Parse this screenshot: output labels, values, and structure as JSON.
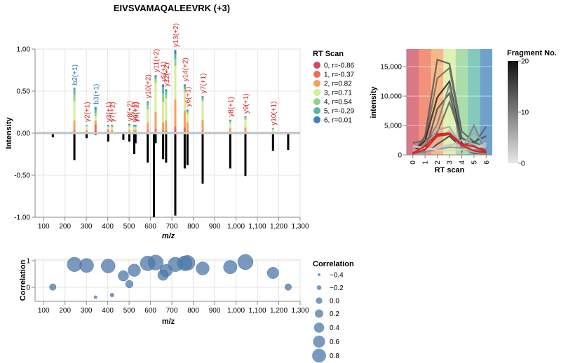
{
  "chart_data": [
    {
      "type": "bar",
      "title": "EIVSVAMAQALEEVRK (+3)",
      "xlabel": "m/z",
      "ylabel": "Intensity",
      "xlim": [
        60,
        1300
      ],
      "ylim": [
        -1,
        1
      ],
      "x_ticks": [
        "100",
        "200",
        "300",
        "400",
        "500",
        "600",
        "700",
        "800",
        "900",
        "1,000",
        "1,100",
        "1,200",
        "1,300"
      ],
      "y_ticks": [
        "-1.00",
        "-0.50",
        "0.00",
        "0.50",
        "1.00"
      ],
      "legend": {
        "title": "RT Scan",
        "placement": "right",
        "entries": [
          {
            "label": "0, r=-0.86",
            "color": "#d0495d"
          },
          {
            "label": "1, r=-0.37",
            "color": "#ed6d4e"
          },
          {
            "label": "2, r=0.82",
            "color": "#f6a05c"
          },
          {
            "label": "3, r=0.71",
            "color": "#d4ee98"
          },
          {
            "label": "4, r=0.54",
            "color": "#8fd28f"
          },
          {
            "label": "5, r=-0.29",
            "color": "#5bb7a7"
          },
          {
            "label": "6, r=0.01",
            "color": "#3d82bb"
          }
        ]
      },
      "observed": [
        {
          "mz": 244,
          "segments": [
            0.01,
            0.02,
            0.12,
            0.23,
            0.08,
            0.07,
            0.01
          ],
          "label": "b2(+1)",
          "label_color": "#1f77b4"
        },
        {
          "mz": 301,
          "segments": [
            0.01,
            0.01,
            0.02,
            0.04,
            0.01,
            0.01,
            0.0
          ],
          "label": "y2(+1)",
          "label_color": "#d62728"
        },
        {
          "mz": 343,
          "segments": [
            0.03,
            0.07,
            0.05,
            0.05,
            0.04,
            0.04,
            0.03
          ],
          "label": "b3(+1)",
          "label_color": "#1f77b4"
        },
        {
          "mz": 402,
          "segments": [
            0.01,
            0.02,
            0.02,
            0.02,
            0.01,
            0.01,
            0.01
          ],
          "label": "y3(+1)",
          "label_color": "#d62728"
        },
        {
          "mz": 420,
          "segments": [
            0.01,
            0.01,
            0.02,
            0.03,
            0.01,
            0.01,
            0.01
          ],
          "label": "y7(+2)",
          "label_color": "#d62728"
        },
        {
          "mz": 501,
          "segments": [
            0.01,
            0.01,
            0.02,
            0.04,
            0.01,
            0.01,
            0.01
          ],
          "label": "y8(+2)",
          "label_color": "#d62728"
        },
        {
          "mz": 524,
          "segments": [
            0.01,
            0.01,
            0.02,
            0.03,
            0.01,
            0.01,
            0.01
          ],
          "label": "y4(+1)",
          "label_color": "#d62728"
        },
        {
          "mz": 530,
          "segments": [
            0.01,
            0.01,
            0.02,
            0.03,
            0.01,
            0.01,
            0.01
          ],
          "label": "y9(+2)",
          "label_color": "#d62728"
        },
        {
          "mz": 587,
          "segments": [
            0.01,
            0.02,
            0.1,
            0.15,
            0.05,
            0.04,
            0.01
          ],
          "label": "y10(+2)",
          "label_color": "#d62728"
        },
        {
          "mz": 624,
          "segments": [
            0.02,
            0.03,
            0.2,
            0.35,
            0.04,
            0.03,
            0.02
          ],
          "label": "y11(+2)",
          "label_color": "#d62728"
        },
        {
          "mz": 659,
          "segments": [
            0.01,
            0.02,
            0.1,
            0.24,
            0.1,
            0.08,
            0.03
          ],
          "label": "y5(+1)",
          "label_color": "#d62728"
        },
        {
          "mz": 673,
          "segments": [
            0.01,
            0.02,
            0.12,
            0.26,
            0.05,
            0.04,
            0.02
          ],
          "label": "y12(+2)",
          "label_color": "#d62728"
        },
        {
          "mz": 716,
          "segments": [
            0.03,
            0.05,
            0.32,
            0.4,
            0.08,
            0.06,
            0.05
          ],
          "label": "y13(+2)",
          "label_color": "#d62728"
        },
        {
          "mz": 760,
          "segments": [
            0.02,
            0.05,
            0.2,
            0.22,
            0.04,
            0.03,
            0.02
          ],
          "label": "y14(+2)",
          "label_color": "#d62728"
        },
        {
          "mz": 773,
          "segments": [
            0.01,
            0.02,
            0.1,
            0.1,
            0.02,
            0.02,
            0.01
          ],
          "label": "y6(+1)",
          "label_color": "#d62728"
        },
        {
          "mz": 844,
          "segments": [
            0.01,
            0.02,
            0.13,
            0.22,
            0.02,
            0.03,
            0.01
          ],
          "label": "y7(+1)",
          "label_color": "#d62728"
        },
        {
          "mz": 973,
          "segments": [
            0.01,
            0.01,
            0.04,
            0.06,
            0.02,
            0.01,
            0.01
          ],
          "label": "y8(+1)",
          "label_color": "#d62728"
        },
        {
          "mz": 1044,
          "segments": [
            0.01,
            0.01,
            0.05,
            0.09,
            0.02,
            0.01,
            0.01
          ],
          "label": "y9(+1)",
          "label_color": "#d62728"
        },
        {
          "mz": 1173,
          "segments": [
            0.0,
            0.0,
            0.01,
            0.03,
            0.01,
            0.01,
            0.0
          ],
          "label": "y10(+1)",
          "label_color": "#d62728"
        }
      ],
      "predicted": [
        {
          "mz": 143,
          "value": -0.05
        },
        {
          "mz": 244,
          "value": -0.32
        },
        {
          "mz": 301,
          "value": -0.06
        },
        {
          "mz": 343,
          "value": -0.02
        },
        {
          "mz": 402,
          "value": -0.1
        },
        {
          "mz": 473,
          "value": -0.08
        },
        {
          "mz": 501,
          "value": -0.1
        },
        {
          "mz": 524,
          "value": -0.25
        },
        {
          "mz": 530,
          "value": -0.12
        },
        {
          "mz": 587,
          "value": -0.35
        },
        {
          "mz": 616,
          "value": -1.0
        },
        {
          "mz": 624,
          "value": -0.12
        },
        {
          "mz": 659,
          "value": -0.31
        },
        {
          "mz": 673,
          "value": -0.35
        },
        {
          "mz": 716,
          "value": -0.98
        },
        {
          "mz": 760,
          "value": -0.42
        },
        {
          "mz": 773,
          "value": -0.38
        },
        {
          "mz": 844,
          "value": -0.6
        },
        {
          "mz": 973,
          "value": -0.42
        },
        {
          "mz": 1044,
          "value": -0.51
        },
        {
          "mz": 1173,
          "value": -0.21
        },
        {
          "mz": 1244,
          "value": -0.2
        }
      ]
    },
    {
      "type": "scatter",
      "xlabel": "m/z",
      "ylabel": "Correlation",
      "xlim": [
        60,
        1300
      ],
      "ylim": [
        -0.4,
        1
      ],
      "x_ticks": [
        "100",
        "200",
        "300",
        "400",
        "500",
        "600",
        "700",
        "800",
        "900",
        "1,000",
        "1,100",
        "1,200",
        "1,300"
      ],
      "y_ticks": [
        "0",
        "1"
      ],
      "color": "#4c78a8",
      "points": [
        {
          "mz": 143,
          "r": 0.01
        },
        {
          "mz": 244,
          "r": 0.86
        },
        {
          "mz": 301,
          "r": 0.82
        },
        {
          "mz": 343,
          "r": -0.37
        },
        {
          "mz": 402,
          "r": 0.8
        },
        {
          "mz": 420,
          "r": -0.29
        },
        {
          "mz": 473,
          "r": 0.43
        },
        {
          "mz": 501,
          "r": 0.12
        },
        {
          "mz": 524,
          "r": 0.64
        },
        {
          "mz": 587,
          "r": 0.9
        },
        {
          "mz": 624,
          "r": 0.93
        },
        {
          "mz": 659,
          "r": 0.46
        },
        {
          "mz": 673,
          "r": 0.63
        },
        {
          "mz": 716,
          "r": 0.86
        },
        {
          "mz": 760,
          "r": 0.9
        },
        {
          "mz": 773,
          "r": 0.92
        },
        {
          "mz": 844,
          "r": 0.71
        },
        {
          "mz": 973,
          "r": 0.76
        },
        {
          "mz": 1044,
          "r": 0.95
        },
        {
          "mz": 1173,
          "r": 0.54
        },
        {
          "mz": 1244,
          "r": 0.01
        }
      ],
      "legend": {
        "title": "Correlation",
        "placement": "right",
        "entries": [
          "−0.4",
          "−0.2",
          "0.0",
          "0.2",
          "0.4",
          "0.6",
          "0.8"
        ],
        "values": [
          -0.4,
          -0.2,
          0.0,
          0.2,
          0.4,
          0.6,
          0.8
        ]
      }
    },
    {
      "type": "line",
      "xlabel": "RT scan",
      "ylabel": "intensity",
      "x": [
        0,
        1,
        2,
        3,
        4,
        5,
        6
      ],
      "ylim": [
        0,
        18000
      ],
      "y_ticks": [
        "0",
        "5,000",
        "10,000",
        "15,000"
      ],
      "band_colors": [
        "#d0495d",
        "#ed6d4e",
        "#f6a05c",
        "#d4ee98",
        "#8fd28f",
        "#5bb7a7",
        "#3d82bb"
      ],
      "highlight_color": "#d62728",
      "series": [
        {
          "values": [
            200,
            3200,
            16200,
            15500,
            4000,
            2200,
            1200
          ],
          "shade": 0.7
        },
        {
          "values": [
            300,
            2500,
            13000,
            14800,
            3000,
            1500,
            900
          ],
          "shade": 0.6
        },
        {
          "values": [
            400,
            2400,
            9800,
            12500,
            2000,
            800,
            600
          ],
          "shade": 0.95
        },
        {
          "values": [
            0,
            600,
            7800,
            10500,
            1600,
            2200,
            3200
          ],
          "shade": 0.75
        },
        {
          "values": [
            300,
            1800,
            5200,
            12000,
            500,
            5000,
            300
          ],
          "shade": 0.5
        },
        {
          "values": [
            2000,
            2500,
            3800,
            9000,
            2800,
            1800,
            4800
          ],
          "shade": 0.65
        },
        {
          "values": [
            1200,
            1500,
            4200,
            4800,
            1500,
            3800,
            1800
          ],
          "shade": 0.3
        },
        {
          "values": [
            200,
            300,
            1800,
            3200,
            1200,
            300,
            200
          ],
          "shade": 0.85
        },
        {
          "values": [
            100,
            200,
            2200,
            4200,
            900,
            500,
            150
          ],
          "shade": 0.2
        },
        {
          "values": [
            500,
            800,
            1200,
            1800,
            1600,
            1200,
            2000
          ],
          "shade": 0.1
        },
        {
          "values": [
            800,
            900,
            1000,
            1500,
            2500,
            1800,
            1200
          ],
          "shade": 0.15
        },
        {
          "values": [
            300,
            500,
            900,
            1300,
            1200,
            900,
            700
          ],
          "shade": 0.4
        },
        {
          "values": [
            1500,
            1200,
            800,
            700,
            900,
            1100,
            1600
          ],
          "shade": 0.05
        }
      ],
      "highlight": [
        {
          "values": [
            300,
            1500,
            3500,
            3700,
            1800,
            1400,
            600
          ]
        },
        {
          "values": [
            200,
            900,
            3200,
            3500,
            1600,
            700,
            300
          ]
        }
      ],
      "legend": {
        "title": "Fragment No.",
        "placement": "right",
        "ticks": [
          "0",
          "10",
          "20"
        ]
      }
    }
  ]
}
